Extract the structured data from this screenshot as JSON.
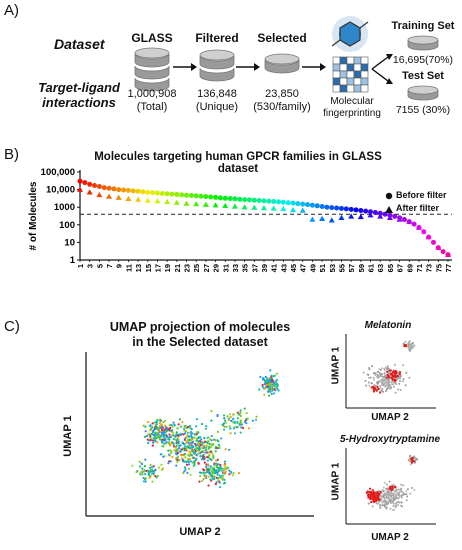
{
  "panel_a": {
    "letter": "A)",
    "dataset_label": "Dataset",
    "interactions_label_line1": "Target-ligand",
    "interactions_label_line2": "interactions",
    "glass": {
      "title": "GLASS",
      "count": "1,000,908",
      "note": "(Total)"
    },
    "filtered": {
      "title": "Filtered",
      "count": "136,848",
      "note": "(Unique)"
    },
    "selected": {
      "title": "Selected",
      "count": "23,850",
      "note": "(530/family)"
    },
    "fingerprint_line1": "Molecular",
    "fingerprint_line2": "fingerprinting",
    "training": {
      "title": "Training Set",
      "count": "16,695",
      "pct": "(70%)"
    },
    "test": {
      "title": "Test Set",
      "count": "7155",
      "pct": "(30%)"
    }
  },
  "panel_b": {
    "letter": "B)",
    "legend_before": "Before filter",
    "legend_after": "After filter"
  },
  "panel_c": {
    "letter": "C)",
    "main_title_line1": "UMAP projection of molecules",
    "main_title_line2": "in the Selected dataset",
    "main_xlabel": "UMAP 2",
    "main_ylabel": "UMAP 1",
    "inset1_title": "Melatonin",
    "inset1_xlabel": "UMAP 2",
    "inset1_ylabel": "UMAP 1",
    "inset2_title": "5-Hydroxytryptamine",
    "inset2_xlabel": "UMAP 2",
    "inset2_ylabel": "UMAP 1"
  },
  "chart_data": {
    "type": "scatter",
    "title": "Molecules targeting human GPCR families in GLASS dataset",
    "ylabel": "# of Molecules",
    "xlabel": "",
    "yscale": "log",
    "ylim": [
      1,
      100000
    ],
    "xlim": [
      1,
      77
    ],
    "grid": false,
    "legend_position": "right",
    "y_tick_labels": [
      "1",
      "10",
      "100",
      "1000",
      "10,000",
      "100,000"
    ],
    "x_tick_labels": [
      "1",
      "3",
      "5",
      "7",
      "9",
      "11",
      "13",
      "15",
      "17",
      "19",
      "21",
      "23",
      "25",
      "27",
      "29",
      "31",
      "33",
      "35",
      "37",
      "39",
      "41",
      "43",
      "45",
      "47",
      "49",
      "51",
      "53",
      "55",
      "57",
      "59",
      "61",
      "63",
      "65",
      "67",
      "69",
      "71",
      "73",
      "75",
      "77"
    ],
    "threshold_line": 400,
    "series": [
      {
        "name": "Before filter",
        "marker": "circle",
        "x": [
          1,
          2,
          3,
          4,
          5,
          6,
          7,
          8,
          9,
          10,
          11,
          12,
          13,
          14,
          15,
          16,
          17,
          18,
          19,
          20,
          21,
          22,
          23,
          24,
          25,
          26,
          27,
          28,
          29,
          30,
          31,
          32,
          33,
          34,
          35,
          36,
          37,
          38,
          39,
          40,
          41,
          42,
          43,
          44,
          45,
          46,
          47,
          48,
          49,
          50,
          51,
          52,
          53,
          54,
          55,
          56,
          57,
          58,
          59,
          60,
          61,
          62,
          63,
          64,
          65,
          66,
          67,
          68,
          69,
          70,
          71,
          72,
          73,
          74,
          75,
          76,
          77
        ],
        "values": [
          30000,
          25000,
          20000,
          17000,
          15000,
          13000,
          12000,
          11000,
          10000,
          9500,
          9000,
          8500,
          8000,
          7500,
          7000,
          6700,
          6400,
          6000,
          5800,
          5500,
          5300,
          5000,
          4800,
          4600,
          4400,
          4200,
          4000,
          3800,
          3600,
          3400,
          3200,
          3100,
          3000,
          2800,
          2700,
          2600,
          2500,
          2400,
          2300,
          2200,
          2100,
          2000,
          1900,
          1800,
          1700,
          1600,
          1500,
          1400,
          1300,
          1200,
          1100,
          1000,
          950,
          900,
          850,
          800,
          750,
          700,
          650,
          600,
          550,
          500,
          450,
          400,
          350,
          300,
          250,
          200,
          150,
          110,
          70,
          40,
          20,
          10,
          5,
          3,
          2
        ]
      },
      {
        "name": "After filter",
        "marker": "triangle",
        "x": [
          1,
          3,
          5,
          7,
          9,
          11,
          13,
          15,
          17,
          19,
          21,
          23,
          25,
          27,
          29,
          31,
          33,
          35,
          37,
          39,
          41,
          43,
          45,
          47,
          49,
          51,
          53,
          55,
          57,
          59,
          61,
          63,
          65,
          67,
          69,
          71,
          73,
          75,
          77
        ],
        "values": [
          10000,
          7000,
          5000,
          4000,
          3500,
          3000,
          2700,
          2400,
          2200,
          2000,
          1800,
          1600,
          1500,
          1400,
          1300,
          1200,
          1100,
          1000,
          950,
          900,
          850,
          800,
          700,
          650,
          200,
          220,
          180,
          250,
          300,
          280,
          350,
          300,
          250,
          200,
          150,
          70,
          20,
          5,
          2
        ]
      }
    ]
  }
}
